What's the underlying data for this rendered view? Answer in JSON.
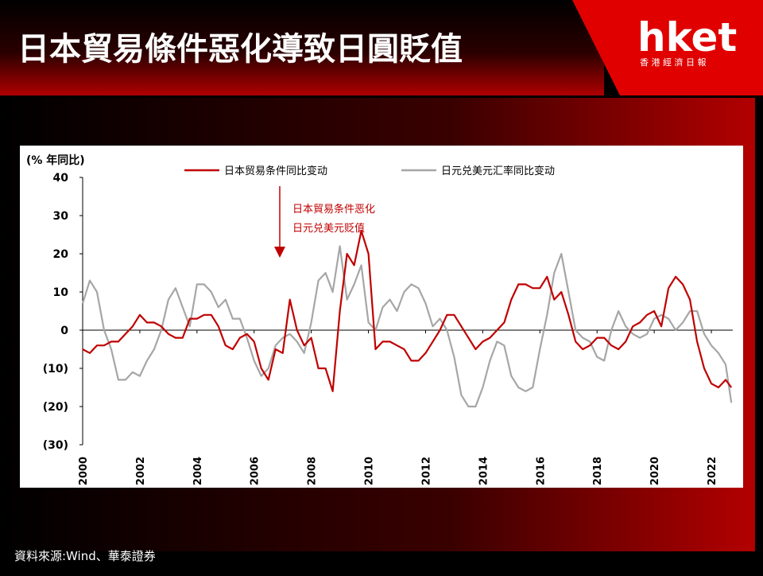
{
  "header": {
    "title": "日本貿易條件惡化導致日圓貶值",
    "logo": "hket",
    "logo_subtitle": "香 港 經 濟 日 報"
  },
  "source": "資料來源:Wind、華泰證券",
  "chart_data": {
    "type": "line",
    "y_axis_label": "(% 年同比)",
    "annotation": [
      "日本貿易条件恶化",
      "日元兑美元贬值"
    ],
    "x": [
      2000,
      2000.25,
      2000.5,
      2000.75,
      2001,
      2001.25,
      2001.5,
      2001.75,
      2002,
      2002.25,
      2002.5,
      2002.75,
      2003,
      2003.25,
      2003.5,
      2003.75,
      2004,
      2004.25,
      2004.5,
      2004.75,
      2005,
      2005.25,
      2005.5,
      2005.75,
      2006,
      2006.25,
      2006.5,
      2006.75,
      2007,
      2007.25,
      2007.5,
      2007.75,
      2008,
      2008.25,
      2008.5,
      2008.75,
      2009,
      2009.25,
      2009.5,
      2009.75,
      2010,
      2010.25,
      2010.5,
      2010.75,
      2011,
      2011.25,
      2011.5,
      2011.75,
      2012,
      2012.25,
      2012.5,
      2012.75,
      2013,
      2013.25,
      2013.5,
      2013.75,
      2014,
      2014.25,
      2014.5,
      2014.75,
      2015,
      2015.25,
      2015.5,
      2015.75,
      2016,
      2016.25,
      2016.5,
      2016.75,
      2017,
      2017.25,
      2017.5,
      2017.75,
      2018,
      2018.25,
      2018.5,
      2018.75,
      2019,
      2019.25,
      2019.5,
      2019.75,
      2020,
      2020.25,
      2020.5,
      2020.75,
      2021,
      2021.25,
      2021.5,
      2021.75,
      2022,
      2022.25,
      2022.5,
      2022.7
    ],
    "series": [
      {
        "name": "日本贸易条件同比变动",
        "color": "#c00000",
        "values": [
          -5,
          -6,
          -4,
          -4,
          -3,
          -3,
          -1,
          1,
          4,
          2,
          2,
          1,
          -1,
          -2,
          -2,
          3,
          3,
          4,
          4,
          1,
          -4,
          -5,
          -2,
          -1,
          -3,
          -10,
          -13,
          -5,
          -6,
          8,
          0,
          -4,
          -2,
          -10,
          -10,
          -16,
          5,
          20,
          17,
          26,
          20,
          -5,
          -3,
          -3,
          -4,
          -5,
          -8,
          -8,
          -6,
          -3,
          0,
          4,
          4,
          1,
          -2,
          -5,
          -3,
          -2,
          0,
          2,
          8,
          12,
          12,
          11,
          11,
          14,
          8,
          10,
          4,
          -3,
          -5,
          -4,
          -2,
          -2,
          -4,
          -5,
          -3,
          1,
          2,
          4,
          5,
          1,
          11,
          14,
          12,
          8,
          -3,
          -10,
          -14,
          -15,
          -13,
          -15
        ]
      },
      {
        "name": "日元兑美元汇率同比变动",
        "color": "#a6a6a6",
        "values": [
          7,
          13,
          10,
          0,
          -5,
          -13,
          -13,
          -11,
          -12,
          -8,
          -5,
          0,
          8,
          11,
          6,
          1,
          12,
          12,
          10,
          6,
          8,
          3,
          3,
          -2,
          -8,
          -12,
          -10,
          -4,
          -2,
          -1,
          -3,
          -6,
          2,
          13,
          15,
          10,
          22,
          8,
          12,
          17,
          2,
          0,
          6,
          8,
          5,
          10,
          12,
          11,
          7,
          1,
          3,
          0,
          -7,
          -17,
          -20,
          -20,
          -15,
          -8,
          -3,
          -4,
          -12,
          -15,
          -16,
          -15,
          -5,
          4,
          15,
          20,
          10,
          0,
          -2,
          -3,
          -7,
          -8,
          0,
          5,
          1,
          -1,
          -2,
          -1,
          3,
          4,
          3,
          0,
          2,
          5,
          5,
          -1,
          -4,
          -6,
          -9,
          -19
        ]
      }
    ],
    "xlim": [
      2000,
      2022.75
    ],
    "xticks": [
      2000,
      2002,
      2004,
      2006,
      2008,
      2010,
      2012,
      2014,
      2016,
      2018,
      2020,
      2022
    ],
    "ylim": [
      -30,
      40
    ],
    "yticks": [
      40,
      30,
      20,
      10,
      0,
      {
        "value": -10,
        "label": "(10)"
      },
      {
        "value": -20,
        "label": "(20)"
      },
      {
        "value": -30,
        "label": "(30)"
      }
    ]
  }
}
